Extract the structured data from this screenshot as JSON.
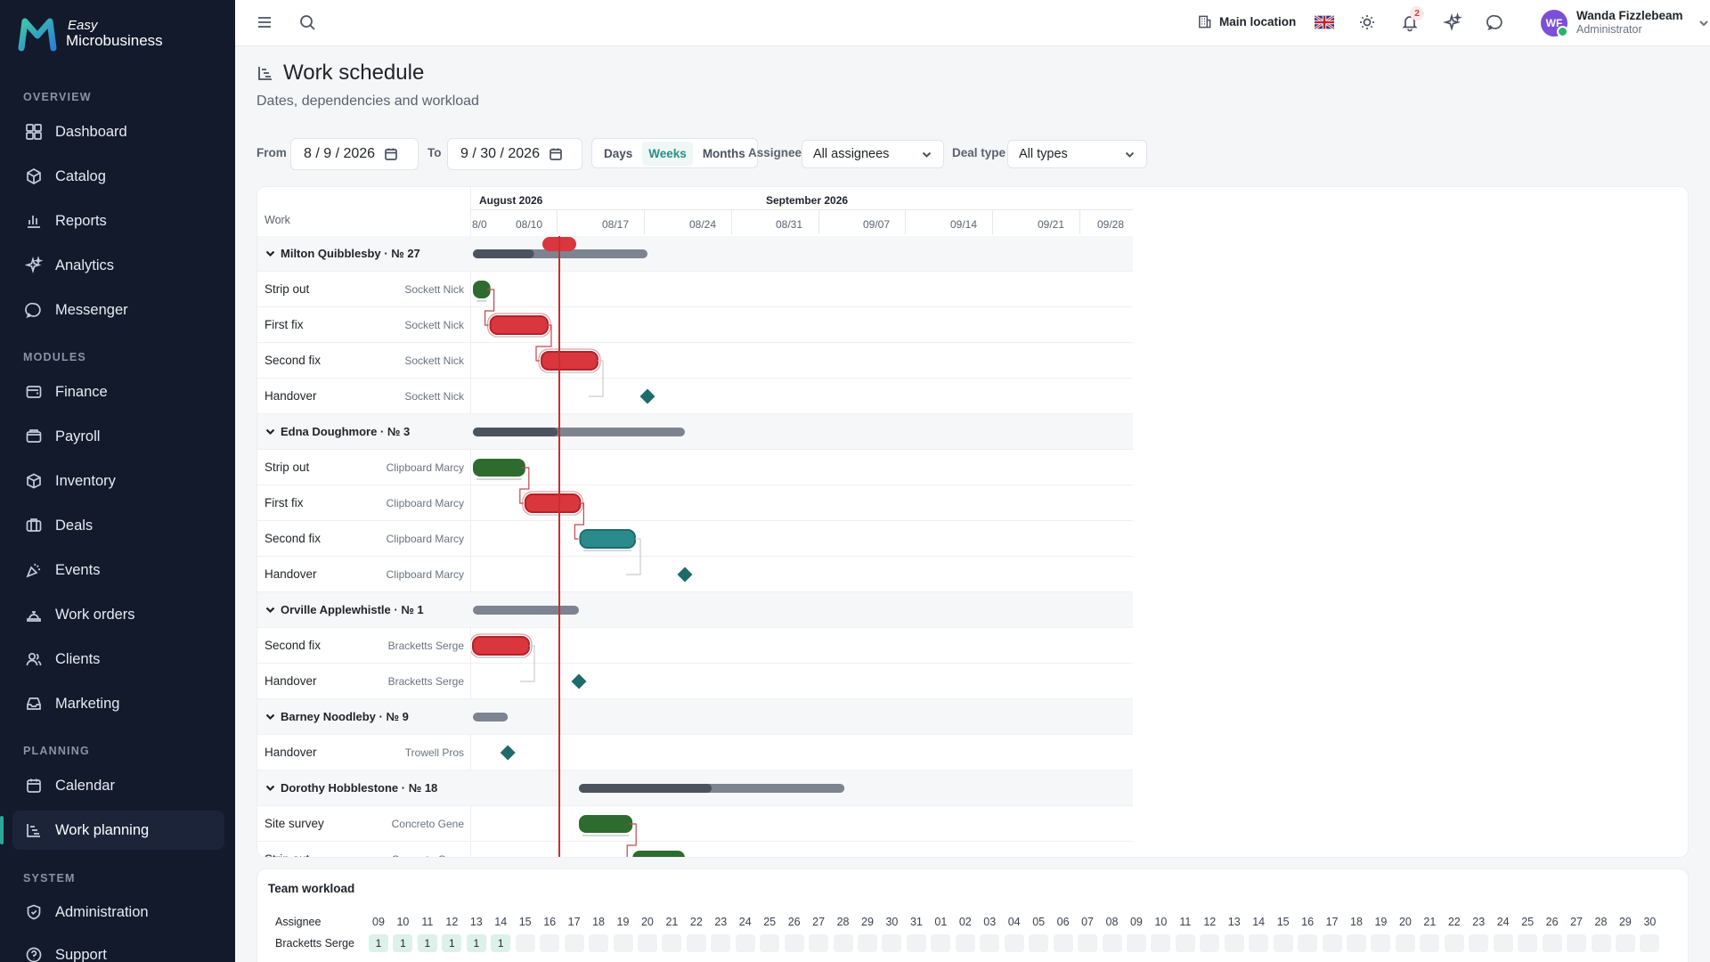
{
  "app": {
    "logo_line1": "Easy",
    "logo_line2": "Microbusiness"
  },
  "sidebar": {
    "sections": [
      {
        "label": "OVERVIEW"
      },
      {
        "label": "MODULES"
      },
      {
        "label": "PLANNING"
      },
      {
        "label": "SYSTEM"
      }
    ],
    "items": [
      {
        "label": "Dashboard",
        "icon": "dashboard-icon"
      },
      {
        "label": "Catalog",
        "icon": "catalog-icon"
      },
      {
        "label": "Reports",
        "icon": "reports-icon"
      },
      {
        "label": "Analytics",
        "icon": "analytics-icon"
      },
      {
        "label": "Messenger",
        "icon": "messenger-icon"
      },
      {
        "label": "Finance",
        "icon": "finance-icon"
      },
      {
        "label": "Payroll",
        "icon": "payroll-icon"
      },
      {
        "label": "Inventory",
        "icon": "inventory-icon"
      },
      {
        "label": "Deals",
        "icon": "deals-icon"
      },
      {
        "label": "Events",
        "icon": "events-icon"
      },
      {
        "label": "Work orders",
        "icon": "work-orders-icon"
      },
      {
        "label": "Clients",
        "icon": "clients-icon"
      },
      {
        "label": "Marketing",
        "icon": "marketing-icon"
      },
      {
        "label": "Calendar",
        "icon": "calendar-icon"
      },
      {
        "label": "Work planning",
        "icon": "work-planning-icon",
        "active": true
      },
      {
        "label": "Administration",
        "icon": "administration-icon"
      },
      {
        "label": "Support",
        "icon": "support-icon"
      }
    ]
  },
  "topbar": {
    "location": "Main location",
    "notifications_count": "2",
    "user_initials": "WF",
    "user_name": "Wanda Fizzlebeam",
    "user_role": "Administrator"
  },
  "page": {
    "title": "Work schedule",
    "subtitle": "Dates, dependencies and workload"
  },
  "filters": {
    "from_label": "From",
    "from_value": "8 / 9 / 2026",
    "to_label": "To",
    "to_value": "9 / 30 / 2026",
    "scale_options": [
      "Days",
      "Weeks",
      "Months"
    ],
    "scale_selected": "Weeks",
    "assignee_label": "Assignee",
    "assignee_value": "All assignees",
    "deal_type_label": "Deal type",
    "deal_type_value": "All types"
  },
  "gantt": {
    "work_header": "Work",
    "months": [
      "August 2026",
      "September 2026"
    ],
    "weeks": [
      "8/0",
      "08/10",
      "08/17",
      "08/24",
      "08/31",
      "09/07",
      "09/14",
      "09/21",
      "09/28"
    ],
    "today": "08/15",
    "rows": [
      {
        "type": "group",
        "name": "Milton Quibblesby · № 27",
        "start": 0,
        "end": 14,
        "progress": 0.35
      },
      {
        "type": "task",
        "name": "Strip out",
        "assignee": "Sockett Nick",
        "start": 0,
        "end": 1.4,
        "status": "done",
        "color": "#2d6b2f"
      },
      {
        "type": "task",
        "name": "First fix",
        "assignee": "Sockett Nick",
        "start": 1.4,
        "end": 6,
        "status": "late",
        "color": "#d9363e"
      },
      {
        "type": "task",
        "name": "Second fix",
        "assignee": "Sockett Nick",
        "start": 5.5,
        "end": 10,
        "status": "late",
        "color": "#d9363e"
      },
      {
        "type": "milestone",
        "name": "Handover",
        "assignee": "Sockett Nick",
        "at": 14,
        "color": "#1f6b6b"
      },
      {
        "type": "group",
        "name": "Edna Doughmore · № 3",
        "start": 0,
        "end": 17,
        "progress": 0.4
      },
      {
        "type": "task",
        "name": "Strip out",
        "assignee": "Clipboard Marcy",
        "start": 0,
        "end": 4.2,
        "status": "done",
        "color": "#2d6b2f"
      },
      {
        "type": "task",
        "name": "First fix",
        "assignee": "Clipboard Marcy",
        "start": 4.2,
        "end": 8.6,
        "status": "late",
        "color": "#d9363e"
      },
      {
        "type": "task",
        "name": "Second fix",
        "assignee": "Clipboard Marcy",
        "start": 8.6,
        "end": 13,
        "status": "in-progress",
        "color": "#2a8a8c"
      },
      {
        "type": "milestone",
        "name": "Handover",
        "assignee": "Clipboard Marcy",
        "at": 17,
        "color": "#1f6b6b"
      },
      {
        "type": "group",
        "name": "Orville Applewhistle · № 1",
        "start": 0,
        "end": 8.5,
        "progress": 0
      },
      {
        "type": "task",
        "name": "Second fix",
        "assignee": "Bracketts Serge",
        "start": 0,
        "end": 4.5,
        "status": "late",
        "color": "#d9363e"
      },
      {
        "type": "milestone",
        "name": "Handover",
        "assignee": "Bracketts Serge",
        "at": 8.5,
        "color": "#1f6b6b"
      },
      {
        "type": "group",
        "name": "Barney Noodleby · № 9",
        "start": 0,
        "end": 2.8,
        "progress": 0
      },
      {
        "type": "milestone",
        "name": "Handover",
        "assignee": "Trowell Pros",
        "at": 2.8,
        "color": "#1f6b6b"
      },
      {
        "type": "group",
        "name": "Dorothy Hobblestone · № 18",
        "start": 8.5,
        "end": 29.8,
        "progress": 0.5
      },
      {
        "type": "task",
        "name": "Site survey",
        "assignee": "Concreto Gene",
        "start": 8.5,
        "end": 12.8,
        "status": "done",
        "color": "#2d6b2f"
      },
      {
        "type": "task",
        "name": "Strip out",
        "assignee": "Concreto Gene",
        "start": 12.8,
        "end": 17,
        "status": "done",
        "color": "#2d6b2f"
      }
    ]
  },
  "workload": {
    "title": "Team workload",
    "assignee_header": "Assignee",
    "days": [
      "09",
      "10",
      "11",
      "12",
      "13",
      "14",
      "15",
      "16",
      "17",
      "18",
      "19",
      "20",
      "21",
      "22",
      "23",
      "24",
      "25",
      "26",
      "27",
      "28",
      "29",
      "30",
      "31",
      "01",
      "02",
      "03",
      "04",
      "05",
      "06",
      "07",
      "08",
      "09",
      "10",
      "11",
      "12",
      "13",
      "14",
      "15",
      "16",
      "17",
      "18",
      "19",
      "20",
      "21",
      "22",
      "23",
      "24",
      "25",
      "26",
      "27",
      "28",
      "29",
      "30"
    ],
    "rows": [
      {
        "name": "Bracketts Serge",
        "values": [
          "1",
          "1",
          "1",
          "1",
          "1",
          "1",
          "",
          "",
          "",
          "",
          "",
          "",
          "",
          "",
          "",
          "",
          "",
          "",
          "",
          "",
          "",
          "",
          "",
          "",
          "",
          "",
          "",
          "",
          "",
          "",
          "",
          "",
          "",
          "",
          "",
          "",
          "",
          "",
          "",
          "",
          "",
          "",
          "",
          "",
          "",
          "",
          "",
          "",
          "",
          "",
          "",
          "",
          ""
        ]
      }
    ]
  }
}
